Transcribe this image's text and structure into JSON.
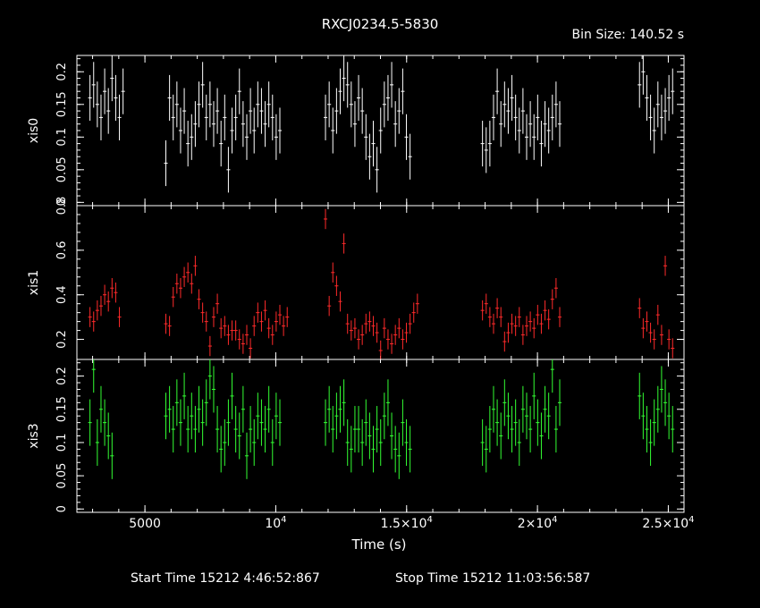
{
  "title": "RXCJ0234.5-5830",
  "bin_size_label": "Bin Size: 140.52 s",
  "footer": {
    "start_label": "Start Time 15212  4:46:52:867",
    "stop_label": "Stop Time 15212 11:03:56:587"
  },
  "colors": {
    "background": "#000000",
    "axes": "#ffffff",
    "xis0": "#ffffff",
    "xis1": "#ff2a2a",
    "xis3": "#33ff33"
  },
  "chart_data": {
    "type": "scatter",
    "style": "light curve with vertical error bars",
    "x_unit": "s",
    "xlabel": "Time (s)",
    "xlim": [
      2400,
      25600
    ],
    "x_ticks": [
      {
        "value": 5000,
        "label": "5000"
      },
      {
        "value": 10000,
        "label": "10",
        "sup": "4"
      },
      {
        "value": 15000,
        "label": "1.5×10",
        "sup": "4"
      },
      {
        "value": 20000,
        "label": "2×10",
        "sup": "4"
      },
      {
        "value": 25000,
        "label": "2.5×10",
        "sup": "4"
      }
    ],
    "panels": [
      {
        "name": "xis0",
        "ylabel": "xis0",
        "ylim": [
          -0.005,
          0.225
        ],
        "yticks": [
          0,
          0.05,
          0.1,
          0.15,
          0.2
        ],
        "ytick_labels": [
          "0",
          "0.05",
          "0.1",
          "0.15",
          "0.2"
        ],
        "err": 0.035,
        "segments": [
          {
            "start": 2900,
            "y": [
              0.16,
              0.18,
              0.15,
              0.13,
              0.17,
              0.14,
              0.19,
              0.16,
              0.13,
              0.17
            ]
          },
          {
            "start": 5800,
            "y": [
              0.06,
              0.16,
              0.13,
              0.15,
              0.11,
              0.14,
              0.09,
              0.1,
              0.12,
              0.15,
              0.18,
              0.13,
              0.15,
              0.12,
              0.14,
              0.09,
              0.13,
              0.05,
              0.11,
              0.13,
              0.17,
              0.12,
              0.1,
              0.14,
              0.11,
              0.15,
              0.14,
              0.12,
              0.15,
              0.13,
              0.1,
              0.11
            ]
          },
          {
            "start": 11900,
            "y": [
              0.13,
              0.15,
              0.11,
              0.14,
              0.17,
              0.19,
              0.18,
              0.15,
              0.12,
              0.16,
              0.14,
              0.1,
              0.07,
              0.09,
              0.05,
              0.11,
              0.15,
              0.16,
              0.18,
              0.12,
              0.14,
              0.17,
              0.1,
              0.07
            ]
          },
          {
            "start": 17900,
            "y": [
              0.09,
              0.08,
              0.09,
              0.13,
              0.17,
              0.12,
              0.15,
              0.14,
              0.16,
              0.13,
              0.11,
              0.14,
              0.1,
              0.12,
              0.1,
              0.13,
              0.09,
              0.12,
              0.11,
              0.13,
              0.15,
              0.12
            ]
          },
          {
            "start": 23900,
            "y": [
              0.18,
              0.2,
              0.16,
              0.13,
              0.11,
              0.15,
              0.13,
              0.14,
              0.16,
              0.17
            ]
          }
        ]
      },
      {
        "name": "xis1",
        "ylabel": "xis1",
        "ylim": [
          0.11,
          0.8
        ],
        "yticks": [
          0.2,
          0.4,
          0.6,
          0.8
        ],
        "ytick_labels": [
          "0.2",
          "0.4",
          "0.6",
          "0.8"
        ],
        "err": 0.045,
        "segments": [
          {
            "start": 2900,
            "y": [
              0.3,
              0.28,
              0.33,
              0.35,
              0.4,
              0.37,
              0.43,
              0.41,
              0.3
            ]
          },
          {
            "start": 5800,
            "y": [
              0.27,
              0.26,
              0.39,
              0.45,
              0.43,
              0.48,
              0.5,
              0.45,
              0.53,
              0.38,
              0.32,
              0.28,
              0.17,
              0.3,
              0.36,
              0.25,
              0.26,
              0.22,
              0.24,
              0.24,
              0.2,
              0.18,
              0.22,
              0.16,
              0.26,
              0.32,
              0.28,
              0.33,
              0.25,
              0.22,
              0.28,
              0.31,
              0.26,
              0.3
            ]
          },
          {
            "start": 11900,
            "y": [
              0.74,
              0.35,
              0.5,
              0.44,
              0.37,
              0.63,
              0.27,
              0.24,
              0.25,
              0.2,
              0.22,
              0.27,
              0.28,
              0.26,
              0.23,
              0.15,
              0.25,
              0.2,
              0.18,
              0.22,
              0.25,
              0.2,
              0.23,
              0.27,
              0.32,
              0.36
            ]
          },
          {
            "start": 17900,
            "y": [
              0.33,
              0.36,
              0.3,
              0.27,
              0.34,
              0.3,
              0.19,
              0.23,
              0.27,
              0.26,
              0.3,
              0.22,
              0.26,
              0.28,
              0.25,
              0.31,
              0.27,
              0.33,
              0.29,
              0.38,
              0.43,
              0.3
            ]
          },
          {
            "start": 23900,
            "y": [
              0.34,
              0.25,
              0.28,
              0.23,
              0.2,
              0.31,
              0.22,
              0.53,
              0.2,
              0.16
            ]
          }
        ]
      },
      {
        "name": "xis3",
        "ylabel": "xis3",
        "ylim": [
          -0.005,
          0.225
        ],
        "yticks": [
          0,
          0.05,
          0.1,
          0.15,
          0.2
        ],
        "ytick_labels": [
          "0",
          "0.05",
          "0.1",
          "0.15",
          "0.2"
        ],
        "err": 0.035,
        "segments": [
          {
            "start": 2900,
            "y": [
              0.13,
              0.21,
              0.1,
              0.15,
              0.13,
              0.11,
              0.08
            ]
          },
          {
            "start": 5800,
            "y": [
              0.14,
              0.15,
              0.12,
              0.16,
              0.13,
              0.17,
              0.12,
              0.14,
              0.12,
              0.15,
              0.13,
              0.16,
              0.2,
              0.18,
              0.12,
              0.09,
              0.1,
              0.13,
              0.17,
              0.12,
              0.11,
              0.15,
              0.08,
              0.12,
              0.1,
              0.14,
              0.13,
              0.12,
              0.15,
              0.1,
              0.14,
              0.13
            ]
          },
          {
            "start": 11900,
            "y": [
              0.13,
              0.15,
              0.12,
              0.14,
              0.15,
              0.16,
              0.1,
              0.09,
              0.12,
              0.12,
              0.1,
              0.13,
              0.11,
              0.09,
              0.12,
              0.1,
              0.14,
              0.16,
              0.11,
              0.09,
              0.08,
              0.13,
              0.1,
              0.09
            ]
          },
          {
            "start": 17900,
            "y": [
              0.1,
              0.09,
              0.12,
              0.15,
              0.13,
              0.11,
              0.16,
              0.14,
              0.12,
              0.13,
              0.1,
              0.15,
              0.14,
              0.12,
              0.17,
              0.13,
              0.11,
              0.15,
              0.14,
              0.21,
              0.12,
              0.16
            ]
          },
          {
            "start": 23900,
            "y": [
              0.17,
              0.14,
              0.12,
              0.1,
              0.13,
              0.15,
              0.18,
              0.16,
              0.14,
              0.12
            ]
          }
        ]
      }
    ]
  }
}
